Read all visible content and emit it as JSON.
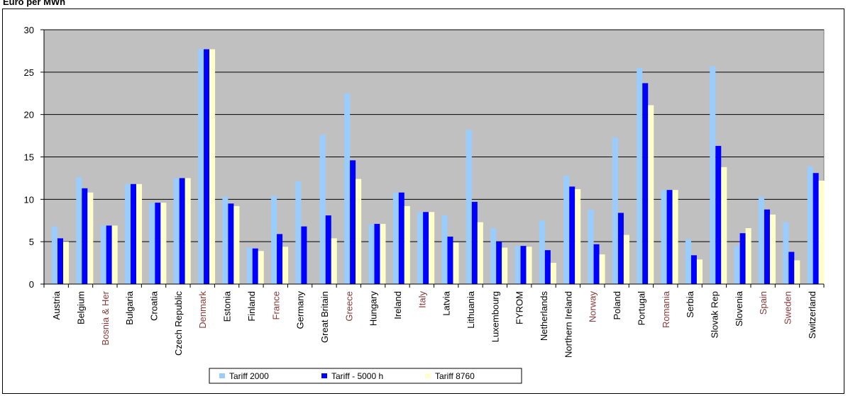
{
  "chart_data": {
    "type": "bar",
    "ylabel": "Euro per MWh",
    "ylim": [
      0,
      30
    ],
    "yticks": [
      0,
      5,
      10,
      15,
      20,
      25,
      30
    ],
    "grid": true,
    "legend_position": "bottom",
    "colors": {
      "plot_bg": "#C0C0C0",
      "highlight_label": "#8B3A3A",
      "label": "#000000"
    },
    "categories": [
      "Austria",
      "Belgium",
      "Bosnia & Her",
      "Bulgaria",
      "Croatia",
      "Czech Republic",
      "Denmark",
      "Estonia",
      "Finland",
      "France",
      "Germany",
      "Great Britain",
      "Greece",
      "Hungary",
      "Ireland",
      "Italy",
      "Latvia",
      "Lithuania",
      "Luxembourg",
      "FYROM",
      "Netherlands",
      "Northern Ireland",
      "Norway",
      "Poland",
      "Portugal",
      "Romania",
      "Serbia",
      "Slovak Rep",
      "Slovenia",
      "Spain",
      "Sweden",
      "Switzerland"
    ],
    "highlighted_categories": [
      "Bosnia & Her",
      "Denmark",
      "France",
      "Greece",
      "Italy",
      "Norway",
      "Romania",
      "Spain",
      "Sweden"
    ],
    "series": [
      {
        "name": "Tariff 2000",
        "color": "#99CCFF",
        "values": [
          6.8,
          12.6,
          6.9,
          11.8,
          9.6,
          12.5,
          27.7,
          10.3,
          4.3,
          10.4,
          12.1,
          17.6,
          22.5,
          7.1,
          10.8,
          8.5,
          8.1,
          18.2,
          6.6,
          4.5,
          7.5,
          12.8,
          8.8,
          17.3,
          25.5,
          11.1,
          5.3,
          25.7,
          4.5,
          10.3,
          7.3,
          13.9
        ]
      },
      {
        "name": "Tariff - 5000 h",
        "color": "#0000FF",
        "values": [
          5.4,
          11.3,
          6.9,
          11.8,
          9.6,
          12.5,
          27.7,
          9.5,
          4.2,
          5.9,
          6.8,
          8.1,
          14.6,
          7.1,
          10.8,
          8.5,
          5.6,
          9.7,
          5.0,
          4.5,
          4.0,
          11.5,
          4.7,
          8.4,
          23.7,
          11.1,
          3.4,
          16.3,
          6.0,
          8.8,
          3.8,
          13.1
        ]
      },
      {
        "name": "Tariff 8760",
        "color": "#FFFFCC",
        "values": [
          5.0,
          10.8,
          6.9,
          11.8,
          9.6,
          12.5,
          27.7,
          9.2,
          3.9,
          4.4,
          0.0,
          5.4,
          12.4,
          7.1,
          9.2,
          8.5,
          4.9,
          7.3,
          4.3,
          4.4,
          2.5,
          11.2,
          3.5,
          5.8,
          21.1,
          11.1,
          2.9,
          13.8,
          6.6,
          8.2,
          2.8,
          12.2
        ]
      }
    ]
  }
}
